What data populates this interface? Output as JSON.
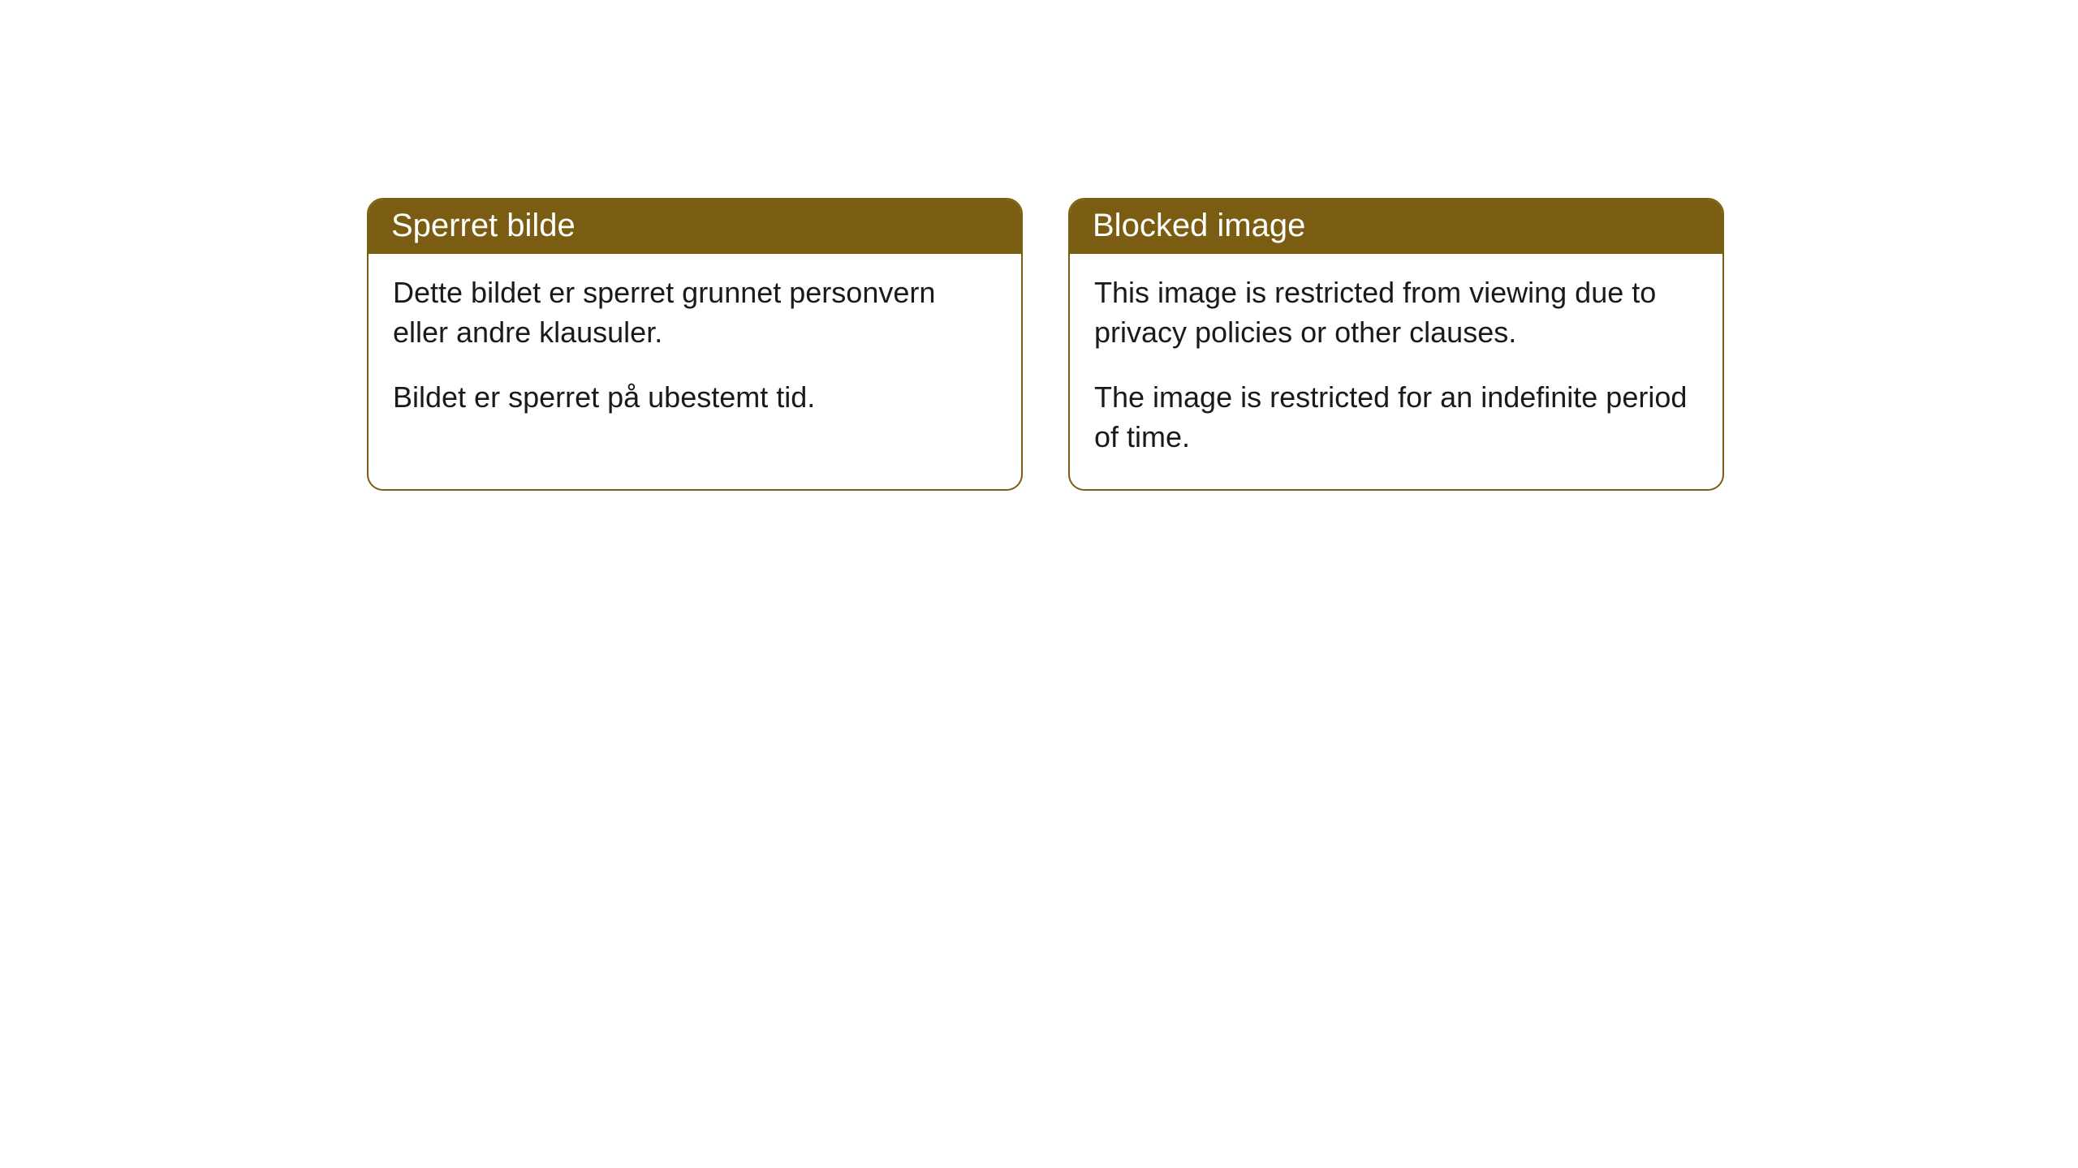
{
  "cards": [
    {
      "title": "Sperret bilde",
      "paragraph1": "Dette bildet er sperret grunnet personvern eller andre klausuler.",
      "paragraph2": "Bildet er sperret på ubestemt tid."
    },
    {
      "title": "Blocked image",
      "paragraph1": "This image is restricted from viewing due to privacy policies or other clauses.",
      "paragraph2": "The image is restricted for an indefinite period of time."
    }
  ],
  "styling": {
    "header_background": "#7a5d12",
    "header_text_color": "#ffffff",
    "border_color": "#7a5d12",
    "body_background": "#ffffff",
    "body_text_color": "#1a1a1a",
    "border_radius": 20,
    "header_fontsize": 40,
    "body_fontsize": 36
  }
}
